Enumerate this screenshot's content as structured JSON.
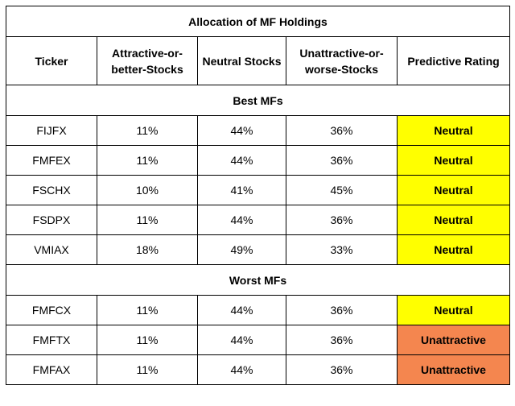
{
  "table": {
    "title": "Allocation of MF Holdings",
    "headers": {
      "ticker": "Ticker",
      "attractive": "Attractive-or-better-Stocks",
      "neutral": "Neutral Stocks",
      "unattractive": "Unattractive-or-worse-Stocks",
      "rating": "Predictive Rating"
    },
    "sections": [
      {
        "label": "Best MFs",
        "rows": [
          {
            "ticker": "FIJFX",
            "attractive": "11%",
            "neutral": "44%",
            "unattractive": "36%",
            "rating": "Neutral",
            "rating_color": "#ffff00"
          },
          {
            "ticker": "FMFEX",
            "attractive": "11%",
            "neutral": "44%",
            "unattractive": "36%",
            "rating": "Neutral",
            "rating_color": "#ffff00"
          },
          {
            "ticker": "FSCHX",
            "attractive": "10%",
            "neutral": "41%",
            "unattractive": "45%",
            "rating": "Neutral",
            "rating_color": "#ffff00"
          },
          {
            "ticker": "FSDPX",
            "attractive": "11%",
            "neutral": "44%",
            "unattractive": "36%",
            "rating": "Neutral",
            "rating_color": "#ffff00"
          },
          {
            "ticker": "VMIAX",
            "attractive": "18%",
            "neutral": "49%",
            "unattractive": "33%",
            "rating": "Neutral",
            "rating_color": "#ffff00"
          }
        ]
      },
      {
        "label": "Worst MFs",
        "rows": [
          {
            "ticker": "FMFCX",
            "attractive": "11%",
            "neutral": "44%",
            "unattractive": "36%",
            "rating": "Neutral",
            "rating_color": "#ffff00"
          },
          {
            "ticker": "FMFTX",
            "attractive": "11%",
            "neutral": "44%",
            "unattractive": "36%",
            "rating": "Unattractive",
            "rating_color": "#f4864f"
          },
          {
            "ticker": "FMFAX",
            "attractive": "11%",
            "neutral": "44%",
            "unattractive": "36%",
            "rating": "Unattractive",
            "rating_color": "#f4864f"
          }
        ]
      }
    ]
  }
}
